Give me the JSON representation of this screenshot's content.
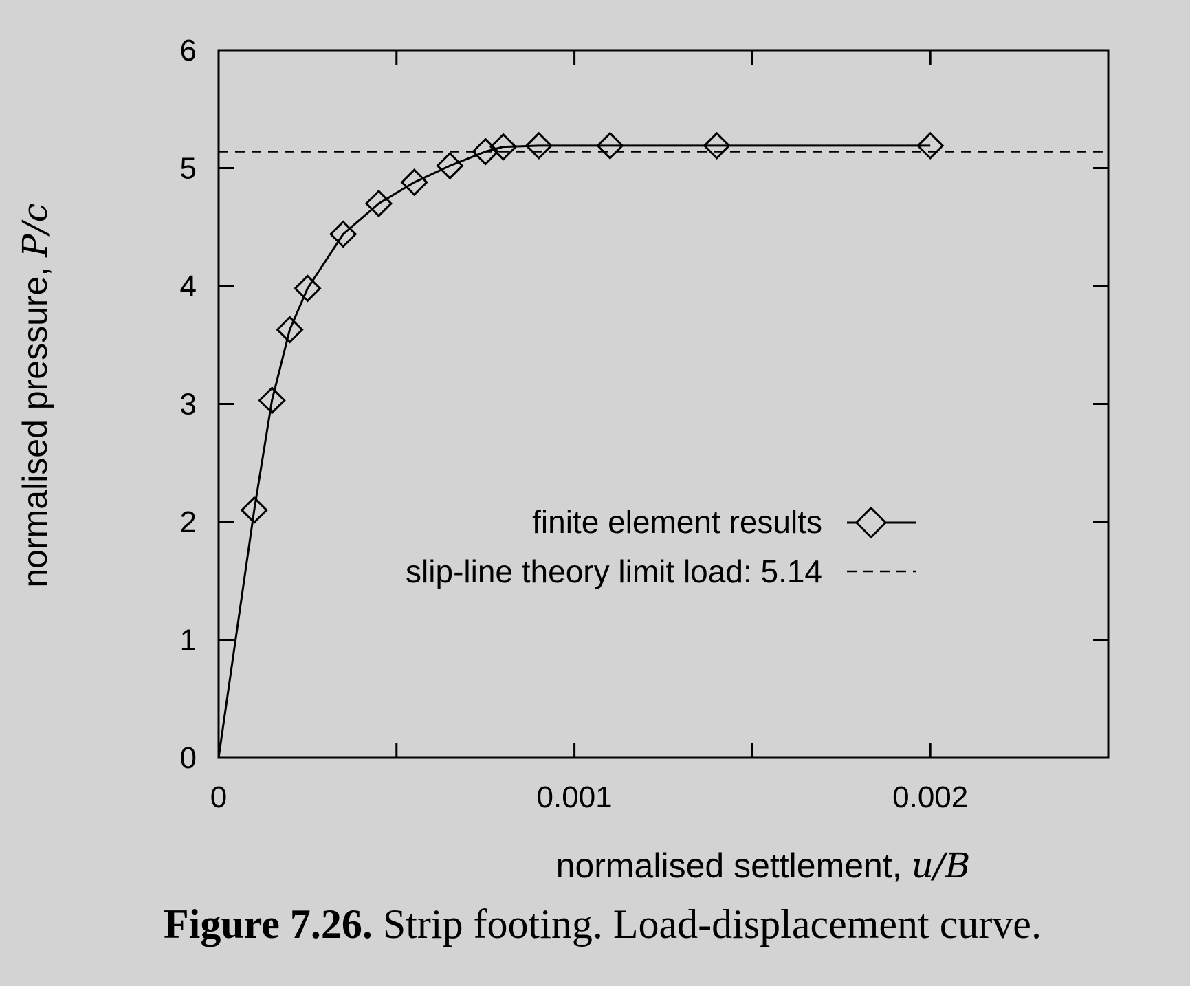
{
  "chart_data": {
    "type": "line",
    "xlabel": "normalised settlement,",
    "xlabel_var": "u/B",
    "ylabel": "normalised pressure,",
    "ylabel_var": "P/c",
    "xlim": [
      0,
      0.0025
    ],
    "ylim": [
      0,
      6
    ],
    "x_ticks": [
      0,
      0.0005,
      0.001,
      0.0015,
      0.002,
      0.0025
    ],
    "x_tick_labels": [
      {
        "value": 0,
        "label": "0"
      },
      {
        "value": 0.001,
        "label": "0.001"
      },
      {
        "value": 0.002,
        "label": "0.002"
      }
    ],
    "y_ticks": [
      {
        "value": 0,
        "label": "0"
      },
      {
        "value": 1,
        "label": "1"
      },
      {
        "value": 2,
        "label": "2"
      },
      {
        "value": 3,
        "label": "3"
      },
      {
        "value": 4,
        "label": "4"
      },
      {
        "value": 5,
        "label": "5"
      },
      {
        "value": 6,
        "label": "6"
      }
    ],
    "grid": false,
    "legend_position": "center-right",
    "series": [
      {
        "name": "finite element results",
        "style": "solid-diamond",
        "x": [
          0,
          0.0001,
          0.00015,
          0.0002,
          0.00025,
          0.00035,
          0.00045,
          0.00055,
          0.00065,
          0.00075,
          0.0008,
          0.0009,
          0.0011,
          0.0014,
          0.002
        ],
        "y": [
          0,
          2.1,
          3.03,
          3.63,
          3.98,
          4.44,
          4.7,
          4.88,
          5.02,
          5.14,
          5.18,
          5.19,
          5.19,
          5.19,
          5.19
        ],
        "markers": [
          false,
          true,
          true,
          true,
          true,
          true,
          true,
          true,
          true,
          true,
          true,
          true,
          true,
          true,
          true
        ]
      },
      {
        "name": "slip-line theory limit load: 5.14",
        "style": "dashed",
        "x": [
          0,
          0.0025
        ],
        "y": [
          5.14,
          5.14
        ]
      }
    ],
    "caption_label": "Figure 7.26.",
    "caption_text": " Strip footing. Load-displacement curve."
  },
  "colors": {
    "background": "#d3d3d3",
    "ink": "#000000"
  }
}
